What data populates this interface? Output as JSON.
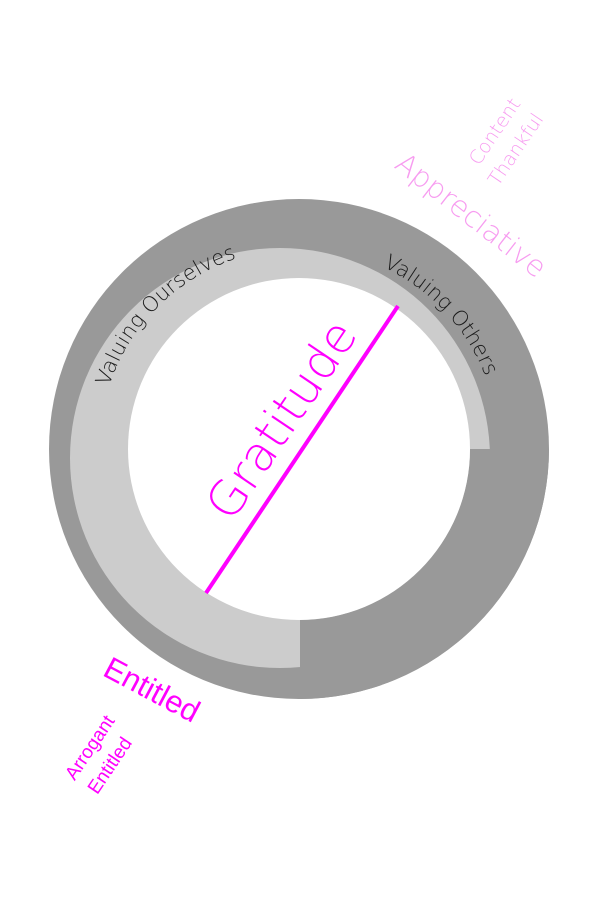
{
  "center_label": "Gratitude",
  "arc_left_label": "Valuing Ourselves",
  "arc_right_label": "Valuing Others",
  "positive_label": "Appreciative",
  "positive_sub1": "Content",
  "positive_sub2": "Thankful",
  "negative_label": "Entitled",
  "negative_sub1": "Arrogant",
  "negative_sub2": "Entitled",
  "colors": {
    "outer_ring": "#999999",
    "inner_ring": "#cccccc",
    "accent": "#ff00ff",
    "positive_text": "#f79cf0",
    "negative_text": "#ff00ff",
    "arc_text": "#1a1a1a"
  }
}
